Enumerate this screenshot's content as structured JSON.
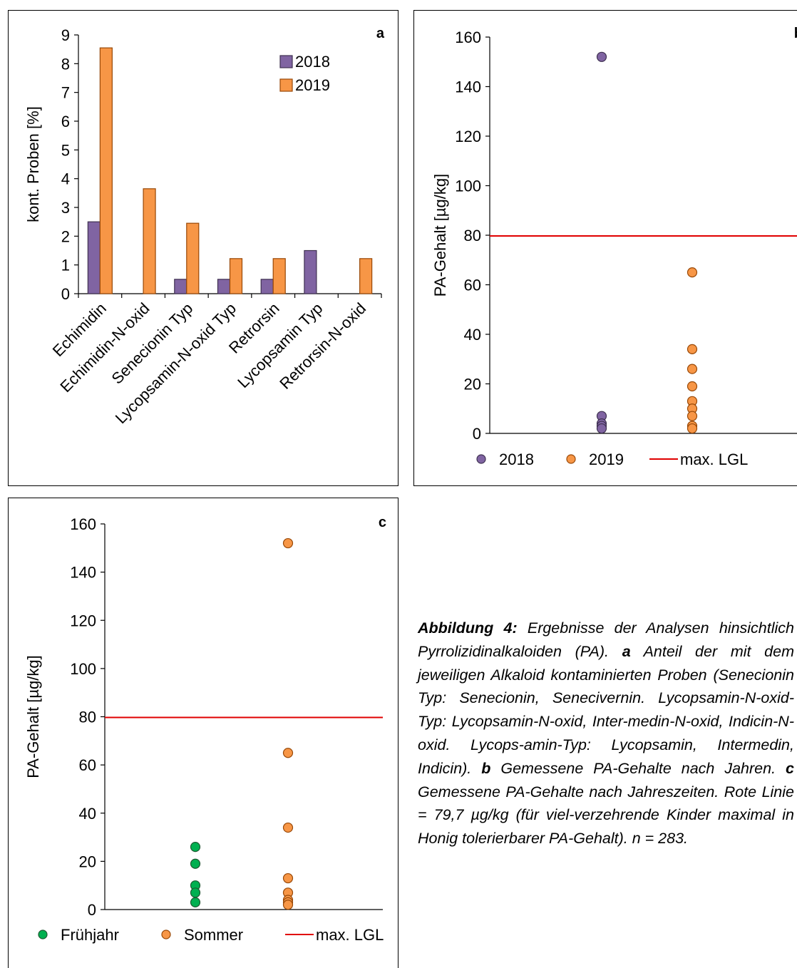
{
  "figure_caption": {
    "label": "Abbildung 4:",
    "intro": " Ergebnisse der Analysen hinsichtlich Pyrrolizidinalkaloiden (PA). ",
    "a_label": "a",
    "a_text": " Anteil der mit dem jeweiligen Alkaloid kontaminierten Proben (Senecionin Typ: Senecionin, Senecivernin. Lycopsamin-N-oxid-Typ: Lycopsamin-N-oxid, Inter-medin-N-oxid, Indicin-N-oxid. Lycops-amin-Typ: Lycopsamin, Intermedin, Indicin). ",
    "b_label": "b",
    "b_text": " Gemessene PA-Gehalte nach Jahren. ",
    "c_label": "c",
    "c_text": " Gemessene PA-Gehalte nach Jahreszeiten. Rote Linie = 79,7 µg/kg (für viel-verzehrende Kinder maximal in Honig tolerierbarer PA-Gehalt). n = 283."
  },
  "chart_data": [
    {
      "panel": "a",
      "type": "bar",
      "ylabel": "kont. Proben [%]",
      "ylim": [
        0,
        9
      ],
      "yticks": [
        0,
        1,
        2,
        3,
        4,
        5,
        6,
        7,
        8,
        9
      ],
      "categories": [
        "Echimidin",
        "Echimidin-N-oxid",
        "Senecionin Typ",
        "Lycopsamin-N-oxid Typ",
        "Retrorsin",
        "Lycopsamin Typ",
        "Retrorsin-N-oxid"
      ],
      "series": [
        {
          "name": "2018",
          "color": "#8064a2",
          "values": [
            2.5,
            0,
            0.5,
            0.5,
            0.5,
            1.5,
            0
          ]
        },
        {
          "name": "2019",
          "color": "#f79646",
          "values": [
            8.55,
            3.65,
            2.45,
            1.22,
            1.22,
            0,
            1.22
          ]
        }
      ],
      "legend": "top-right",
      "grid": false
    },
    {
      "panel": "b",
      "type": "scatter",
      "ylabel": "PA-Gehalt [µg/kg]",
      "ylim": [
        0,
        160
      ],
      "yticks": [
        0,
        20,
        40,
        60,
        80,
        100,
        120,
        140,
        160
      ],
      "series": [
        {
          "name": "2018",
          "color": "#8064a2",
          "x": 1,
          "values": [
            152,
            7,
            4,
            3,
            2
          ]
        },
        {
          "name": "2019",
          "color": "#f79646",
          "x": 2,
          "values": [
            65,
            34,
            26,
            19,
            13,
            10,
            7,
            3,
            2
          ]
        }
      ],
      "reference_line": {
        "name": "max. LGL",
        "value": 79.7,
        "color": "#e00000"
      },
      "legend": "bottom",
      "grid": false
    },
    {
      "panel": "c",
      "type": "scatter",
      "ylabel": "PA-Gehalt [µg/kg]",
      "ylim": [
        0,
        160
      ],
      "yticks": [
        0,
        20,
        40,
        60,
        80,
        100,
        120,
        140,
        160
      ],
      "series": [
        {
          "name": "Frühjahr",
          "color": "#00b050",
          "x": 1,
          "values": [
            26,
            19,
            10,
            7,
            3
          ]
        },
        {
          "name": "Sommer",
          "color": "#f79646",
          "x": 2,
          "values": [
            152,
            65,
            34,
            13,
            7,
            4,
            3,
            2
          ]
        }
      ],
      "reference_line": {
        "name": "max. LGL",
        "value": 79.7,
        "color": "#e00000"
      },
      "legend": "bottom",
      "grid": false
    }
  ]
}
